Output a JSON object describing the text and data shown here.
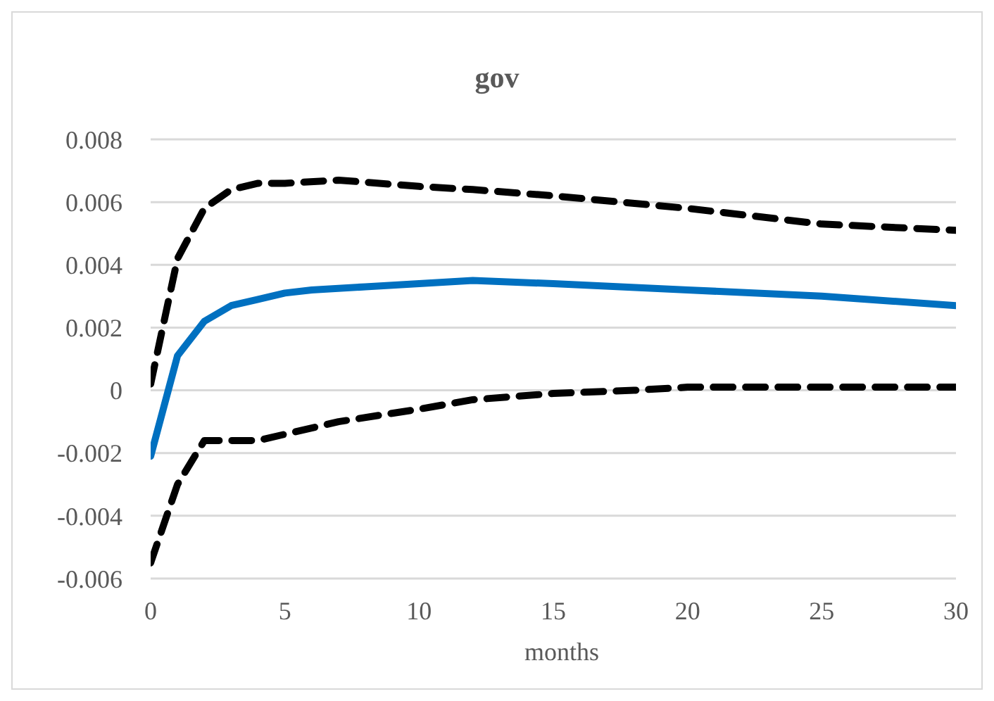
{
  "chart_data": {
    "type": "line",
    "title": "gov",
    "xlabel": "months",
    "xlim": [
      0,
      30
    ],
    "xticks": [
      0,
      5,
      10,
      15,
      20,
      25,
      30
    ],
    "ylim": [
      -0.006,
      0.008
    ],
    "yticks": [
      {
        "value": -0.006,
        "label": "-0.006"
      },
      {
        "value": -0.004,
        "label": "-0.004"
      },
      {
        "value": -0.002,
        "label": "-0.002"
      },
      {
        "value": 0,
        "label": "0"
      },
      {
        "value": 0.002,
        "label": "0.002"
      },
      {
        "value": 0.004,
        "label": "0.004"
      },
      {
        "value": 0.006,
        "label": "0.006"
      },
      {
        "value": 0.008,
        "label": "0.008"
      }
    ],
    "grid": "y",
    "marker": "none",
    "series": [
      {
        "color": "#0070c0",
        "line_style": "solid",
        "x": [
          0,
          1,
          2,
          3,
          4,
          5,
          6,
          8,
          10,
          12,
          15,
          20,
          25,
          30
        ],
        "values": [
          -0.0021,
          0.0011,
          0.0022,
          0.0027,
          0.0029,
          0.0031,
          0.0032,
          0.0033,
          0.0034,
          0.0035,
          0.0034,
          0.0032,
          0.003,
          0.0027
        ]
      },
      {
        "color": "#000000",
        "line_style": "dashed",
        "x": [
          0,
          1,
          2,
          3,
          4,
          5,
          7,
          10,
          12,
          15,
          20,
          25,
          30
        ],
        "values": [
          0.0002,
          0.0042,
          0.0058,
          0.0064,
          0.0066,
          0.0066,
          0.0067,
          0.0065,
          0.0064,
          0.0062,
          0.0058,
          0.0053,
          0.0051
        ]
      },
      {
        "color": "#000000",
        "line_style": "dashed",
        "x": [
          0,
          1,
          2,
          3,
          4,
          5,
          7,
          10,
          12,
          15,
          18,
          20,
          25,
          30
        ],
        "values": [
          -0.0055,
          -0.003,
          -0.0016,
          -0.0016,
          -0.0016,
          -0.0014,
          -0.001,
          -0.0006,
          -0.0003,
          -0.0001,
          0,
          0.0001,
          0.0001,
          0.0001
        ]
      }
    ]
  }
}
